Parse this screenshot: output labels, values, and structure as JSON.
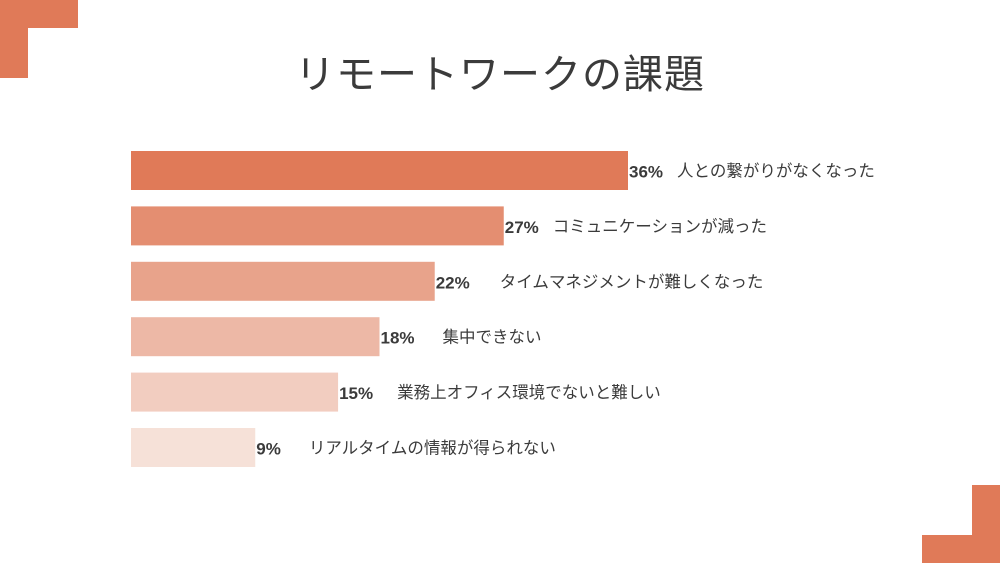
{
  "colors": {
    "accent": "#e07a58",
    "text": "#3b3b3b",
    "background": "#ffffff"
  },
  "chart_data": {
    "type": "bar",
    "orientation": "horizontal",
    "title": "リモートワークの課題",
    "categories": [
      "人との繋がりがなくなった",
      "コミュニケーションが減った",
      "タイムマネジメントが難しくなった",
      "集中できない",
      "業務上オフィス環境でないと難しい",
      "リアルタイムの情報が得られない"
    ],
    "values": [
      36,
      27,
      22,
      18,
      15,
      9
    ],
    "value_labels": [
      "36%",
      "27%",
      "22%",
      "18%",
      "15%",
      "9%"
    ],
    "bar_colors": [
      "#e07a58",
      "#e48e71",
      "#e8a38b",
      "#edb8a6",
      "#f2cdc0",
      "#f6e1d8"
    ],
    "unit": "%",
    "xlabel": "",
    "ylabel": "",
    "grid": false,
    "legend": "none"
  }
}
